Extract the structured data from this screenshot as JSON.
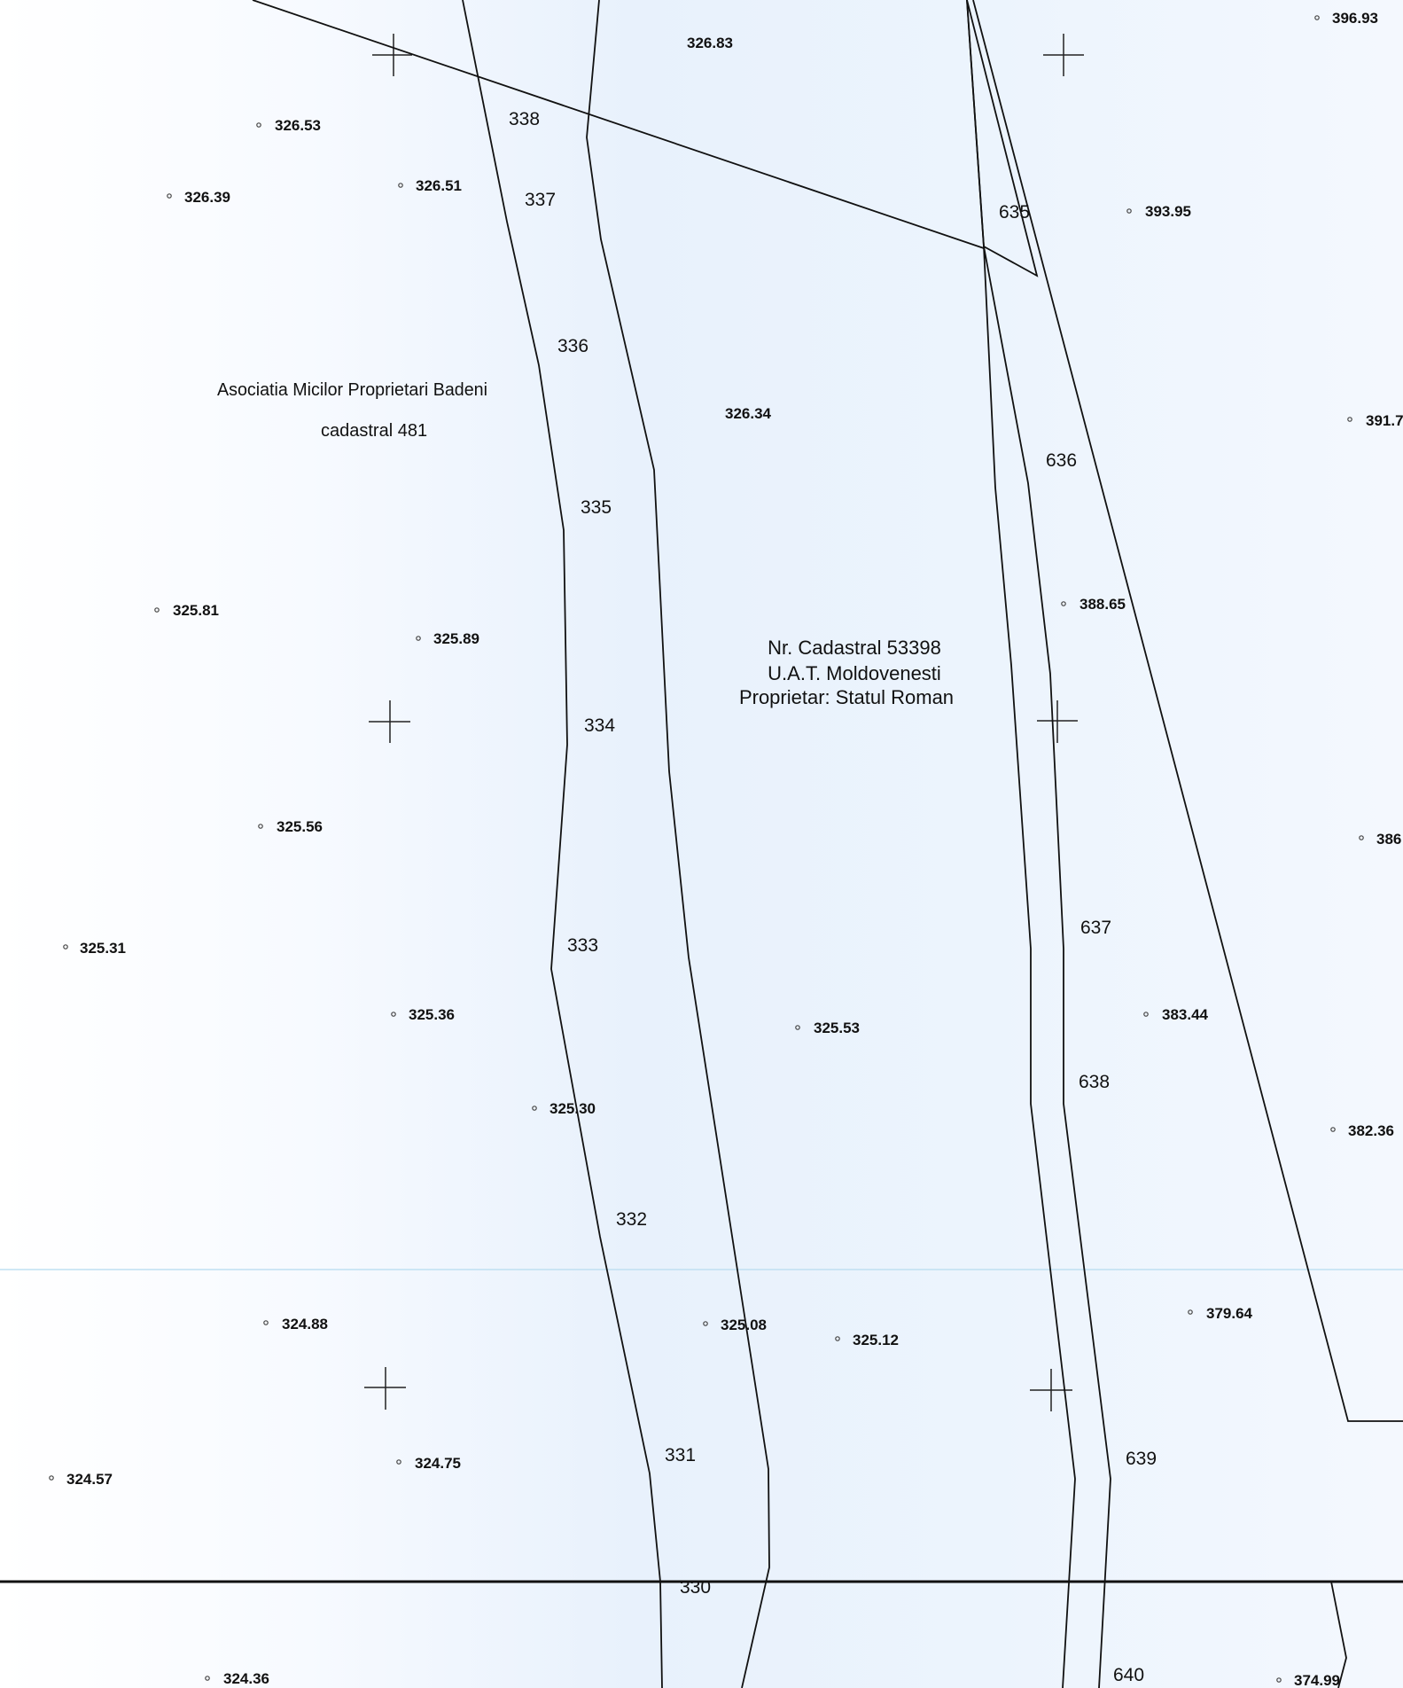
{
  "map": {
    "neighbor_label": {
      "line1": "Asociatia Micilor Proprietari Badeni",
      "line2": "cadastral 481"
    },
    "parcel_label": {
      "line1": "Nr. Cadastral 53398",
      "line2": "U.A.T. Moldovenesti",
      "line3": "Proprietar: Statul Roman"
    },
    "elevations": {
      "e1": "396.93",
      "e2": "326.83",
      "e3": "326.53",
      "e4": "326.51",
      "e5": "326.39",
      "e6": "393.95",
      "e7": "326.34",
      "e8": "391.7",
      "e9": "388.65",
      "e10": "325.81",
      "e11": "325.89",
      "e12": "325.56",
      "e13": "386",
      "e14": "325.31",
      "e15": "325.36",
      "e16": "325.53",
      "e17": "383.44",
      "e18": "325.30",
      "e19": "382.36",
      "e20": "324.88",
      "e21": "325.08",
      "e22": "325.12",
      "e23": "379.64",
      "e24": "324.57",
      "e25": "324.75",
      "e26": "324.36",
      "e27": "374.99"
    },
    "vertices": {
      "v338": "338",
      "v337": "337",
      "v336": "336",
      "v335": "335",
      "v334": "334",
      "v333": "333",
      "v332": "332",
      "v331": "331",
      "v330": "330",
      "v635": "635",
      "v636": "636",
      "v637": "637",
      "v638": "638",
      "v639": "639",
      "v640": "640"
    },
    "colors": {
      "line": "#111111",
      "grid_line": "#bfe0f2",
      "background": "#eef4fc"
    }
  }
}
